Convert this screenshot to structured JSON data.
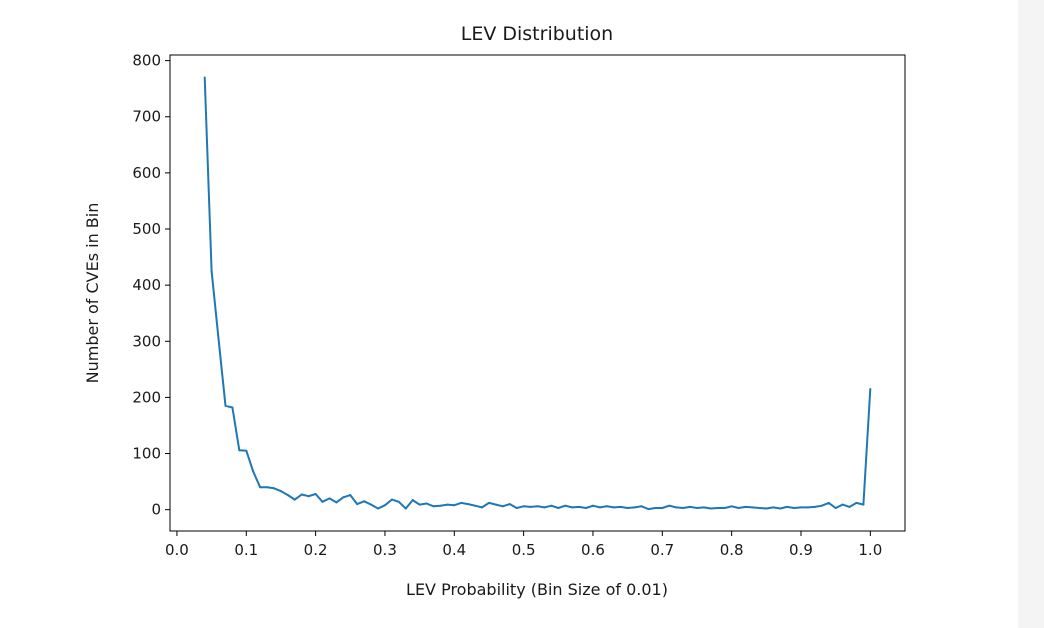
{
  "chart_data": {
    "type": "line",
    "title": "LEV Distribution",
    "xlabel": "LEV Probability (Bin Size of 0.01)",
    "ylabel": "Number of CVEs in Bin",
    "xlim": [
      -0.01,
      1.05
    ],
    "ylim": [
      -38,
      810
    ],
    "xticks": [
      0.0,
      0.1,
      0.2,
      0.3,
      0.4,
      0.5,
      0.6,
      0.7,
      0.8,
      0.9,
      1.0
    ],
    "xtick_labels": [
      "0.0",
      "0.1",
      "0.2",
      "0.3",
      "0.4",
      "0.5",
      "0.6",
      "0.7",
      "0.8",
      "0.9",
      "1.0"
    ],
    "yticks": [
      0,
      100,
      200,
      300,
      400,
      500,
      600,
      700,
      800
    ],
    "ytick_labels": [
      "0",
      "100",
      "200",
      "300",
      "400",
      "500",
      "600",
      "700",
      "800"
    ],
    "grid": false,
    "series": [
      {
        "color": "#1f77b4",
        "x": [
          0.04,
          0.05,
          0.06,
          0.07,
          0.08,
          0.09,
          0.1,
          0.11,
          0.12,
          0.13,
          0.14,
          0.15,
          0.16,
          0.17,
          0.18,
          0.19,
          0.2,
          0.21,
          0.22,
          0.23,
          0.24,
          0.25,
          0.26,
          0.27,
          0.28,
          0.29,
          0.3,
          0.31,
          0.32,
          0.33,
          0.34,
          0.35,
          0.36,
          0.37,
          0.38,
          0.39,
          0.4,
          0.41,
          0.42,
          0.43,
          0.44,
          0.45,
          0.46,
          0.47,
          0.48,
          0.49,
          0.5,
          0.51,
          0.52,
          0.53,
          0.54,
          0.55,
          0.56,
          0.57,
          0.58,
          0.59,
          0.6,
          0.61,
          0.62,
          0.63,
          0.64,
          0.65,
          0.66,
          0.67,
          0.68,
          0.69,
          0.7,
          0.71,
          0.72,
          0.73,
          0.74,
          0.75,
          0.76,
          0.77,
          0.78,
          0.79,
          0.8,
          0.81,
          0.82,
          0.83,
          0.84,
          0.85,
          0.86,
          0.87,
          0.88,
          0.89,
          0.9,
          0.91,
          0.92,
          0.93,
          0.94,
          0.95,
          0.96,
          0.97,
          0.98,
          0.99,
          1.0
        ],
        "y": [
          770,
          425,
          305,
          185,
          182,
          106,
          105,
          68,
          40,
          40,
          38,
          33,
          26,
          18,
          27,
          24,
          28,
          14,
          20,
          13,
          22,
          26,
          10,
          15,
          9,
          2,
          8,
          18,
          14,
          2,
          17,
          9,
          11,
          6,
          7,
          9,
          8,
          12,
          10,
          7,
          4,
          12,
          9,
          6,
          10,
          3,
          6,
          5,
          6,
          4,
          7,
          3,
          7,
          4,
          5,
          3,
          7,
          4,
          6,
          4,
          5,
          3,
          4,
          6,
          1,
          3,
          3,
          7,
          4,
          3,
          5,
          3,
          4,
          2,
          3,
          3,
          6,
          3,
          5,
          4,
          3,
          2,
          4,
          2,
          5,
          3,
          4,
          4,
          5,
          7,
          12,
          3,
          9,
          5,
          12,
          9,
          215
        ]
      }
    ]
  }
}
